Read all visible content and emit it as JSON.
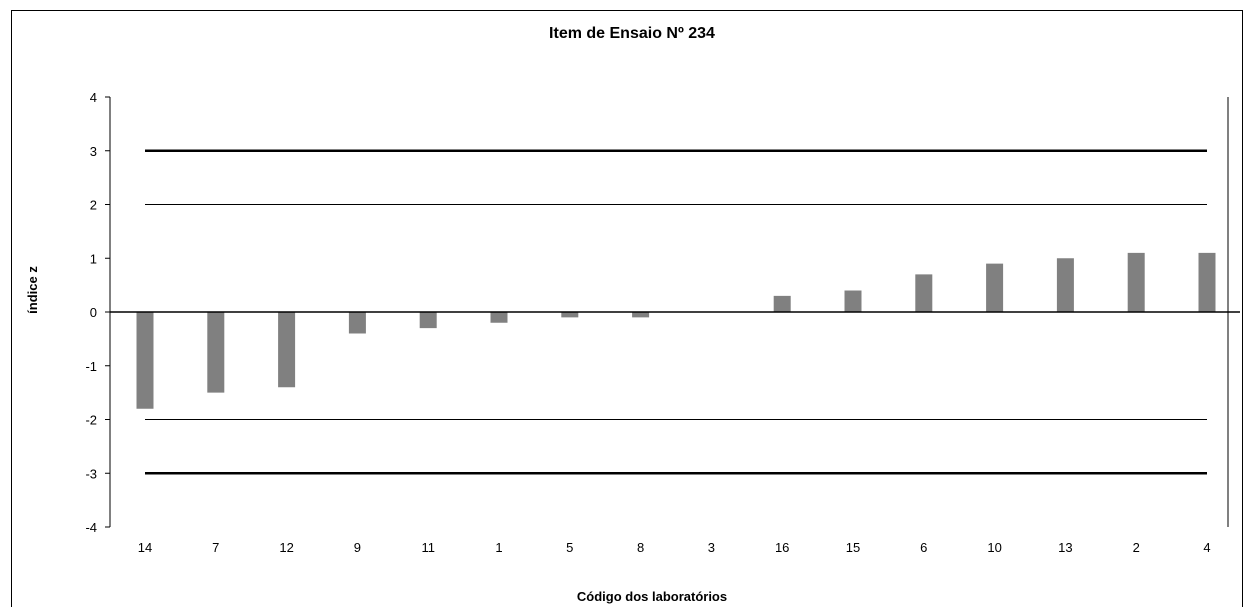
{
  "chart_data": {
    "type": "bar",
    "title": "Item de Ensaio Nº 234",
    "xlabel": "Código dos laboratórios",
    "ylabel": "índice z",
    "categories": [
      "14",
      "7",
      "12",
      "9",
      "11",
      "1",
      "5",
      "8",
      "3",
      "16",
      "15",
      "6",
      "10",
      "13",
      "2",
      "4"
    ],
    "values": [
      -1.8,
      -1.5,
      -1.4,
      -0.4,
      -0.3,
      -0.2,
      -0.1,
      -0.1,
      0.0,
      0.3,
      0.4,
      0.7,
      0.9,
      1.0,
      1.1,
      1.1
    ],
    "ylim": [
      -4,
      4
    ],
    "yticks": [
      "4",
      "3",
      "2",
      "1",
      "0",
      "-1",
      "-2",
      "-3",
      "-4"
    ],
    "reference_lines": [
      {
        "value": 3,
        "style": "thick"
      },
      {
        "value": 2,
        "style": "thin"
      },
      {
        "value": -2,
        "style": "thin"
      },
      {
        "value": -3,
        "style": "thick"
      }
    ],
    "bar_color": "#808080",
    "grid": false,
    "legend": "none"
  }
}
